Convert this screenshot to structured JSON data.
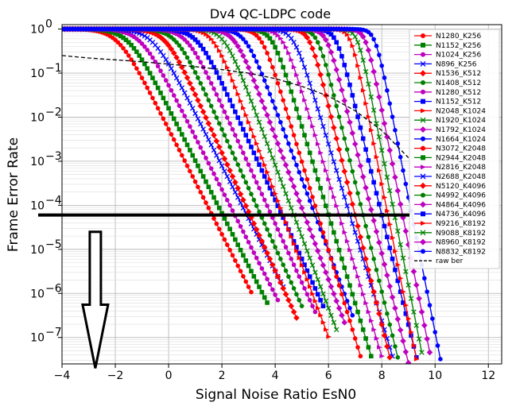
{
  "chart_data": {
    "type": "line",
    "title": "Dv4 QC-LDPC code",
    "xlabel": "Signal Noise Ratio EsN0",
    "ylabel": "Frame Error Rate",
    "xlim": [
      -4,
      12.5
    ],
    "ylim_log10": [
      -7.6,
      0.1
    ],
    "y_scale": "log",
    "x_ticks": [
      -4,
      -2,
      0,
      2,
      4,
      6,
      8,
      10,
      12
    ],
    "x_tick_labels": [
      "−4",
      "−2",
      "0",
      "2",
      "4",
      "6",
      "8",
      "10",
      "12"
    ],
    "y_ticks_log10": [
      0,
      -1,
      -2,
      -3,
      -4,
      -5,
      -6,
      -7
    ],
    "y_tick_mantissa": "10",
    "y_tick_exponents": [
      "0",
      "−1",
      "−2",
      "−3",
      "−4",
      "−5",
      "−6",
      "−7"
    ],
    "grid": true,
    "legend_position": "right",
    "series": [
      {
        "name": "N1280_K256",
        "color": "#ff0000",
        "marker": "circle",
        "x50": -1.9,
        "slope": 1.25,
        "floor": -6.0
      },
      {
        "name": "N1152_K256",
        "color": "#008000",
        "marker": "square",
        "x50": -1.5,
        "slope": 1.25,
        "floor": -6.3
      },
      {
        "name": "N1024_K256",
        "color": "#bf00bf",
        "marker": "circle",
        "x50": -1.05,
        "slope": 1.25,
        "floor": -6.2
      },
      {
        "name": "N896_K256",
        "color": "#0000ff",
        "marker": "x",
        "x50": -0.6,
        "slope": 1.25,
        "floor": -5.9
      },
      {
        "name": "N1536_K512",
        "color": "#ff0000",
        "marker": "diamond",
        "x50": -0.1,
        "slope": 1.4,
        "floor": -6.6
      },
      {
        "name": "N1408_K512",
        "color": "#008000",
        "marker": "circle",
        "x50": 0.3,
        "slope": 1.4,
        "floor": -6.3
      },
      {
        "name": "N1280_K512",
        "color": "#bf00bf",
        "marker": "circle",
        "x50": 0.7,
        "slope": 1.4,
        "floor": -6.5
      },
      {
        "name": "N1152_K512",
        "color": "#0000ff",
        "marker": "square",
        "x50": 1.1,
        "slope": 1.4,
        "floor": -6.4
      },
      {
        "name": "N2048_K1024",
        "color": "#ff0000",
        "marker": "triangle-right",
        "x50": 1.7,
        "slope": 1.7,
        "floor": -7.0
      },
      {
        "name": "N1920_K1024",
        "color": "#008000",
        "marker": "x",
        "x50": 2.1,
        "slope": 1.7,
        "floor": -6.9
      },
      {
        "name": "N1792_K1024",
        "color": "#bf00bf",
        "marker": "diamond",
        "x50": 2.5,
        "slope": 1.7,
        "floor": -6.8
      },
      {
        "name": "N1664_K1024",
        "color": "#0000ff",
        "marker": "circle",
        "x50": 2.9,
        "slope": 1.7,
        "floor": -6.6
      },
      {
        "name": "N3072_K2048",
        "color": "#ff0000",
        "marker": "circle",
        "x50": 3.5,
        "slope": 2.1,
        "floor": -7.5
      },
      {
        "name": "N2944_K2048",
        "color": "#008000",
        "marker": "square",
        "x50": 3.9,
        "slope": 2.1,
        "floor": -7.5
      },
      {
        "name": "N2816_K2048",
        "color": "#bf00bf",
        "marker": "triangle-right",
        "x50": 4.3,
        "slope": 2.1,
        "floor": -7.5
      },
      {
        "name": "N2688_K2048",
        "color": "#0000ff",
        "marker": "x",
        "x50": 4.7,
        "slope": 2.1,
        "floor": -7.5
      },
      {
        "name": "N5120_K4096",
        "color": "#ff0000",
        "marker": "diamond",
        "x50": 5.3,
        "slope": 2.6,
        "floor": -7.6
      },
      {
        "name": "N4992_K4096",
        "color": "#008000",
        "marker": "circle",
        "x50": 5.6,
        "slope": 2.6,
        "floor": -7.6
      },
      {
        "name": "N4864_K4096",
        "color": "#bf00bf",
        "marker": "diamond",
        "x50": 5.95,
        "slope": 2.6,
        "floor": -7.6
      },
      {
        "name": "N4736_K4096",
        "color": "#0000ff",
        "marker": "square",
        "x50": 6.3,
        "slope": 2.6,
        "floor": -7.6
      },
      {
        "name": "N9216_K8192",
        "color": "#ff0000",
        "marker": "triangle-right",
        "x50": 6.85,
        "slope": 3.2,
        "floor": -7.6
      },
      {
        "name": "N9088_K8192",
        "color": "#008000",
        "marker": "x",
        "x50": 7.1,
        "slope": 3.2,
        "floor": -7.6
      },
      {
        "name": "N8960_K8192",
        "color": "#bf00bf",
        "marker": "diamond",
        "x50": 7.4,
        "slope": 3.2,
        "floor": -7.6
      },
      {
        "name": "N8832_K8192",
        "color": "#0000ff",
        "marker": "circle",
        "x50": 7.75,
        "slope": 3.2,
        "floor": -7.6
      },
      {
        "name": "raw ber",
        "color": "#000000",
        "marker": "none",
        "dashed": true,
        "x": [
          -4,
          -3,
          -2,
          -1,
          0,
          1,
          2,
          3,
          4,
          5,
          6,
          7,
          8,
          9
        ],
        "y": [
          0.25,
          0.22,
          0.2,
          0.18,
          0.16,
          0.14,
          0.12,
          0.1,
          0.075,
          0.05,
          0.03,
          0.014,
          0.005,
          0.0012
        ]
      }
    ],
    "annotations": {
      "threshold_line_y": 6e-05,
      "arrow_direction": "down",
      "arrow_x": -2.75,
      "arrow_y_top": 2.5e-05,
      "arrow_y_bottom": 2e-08
    }
  }
}
